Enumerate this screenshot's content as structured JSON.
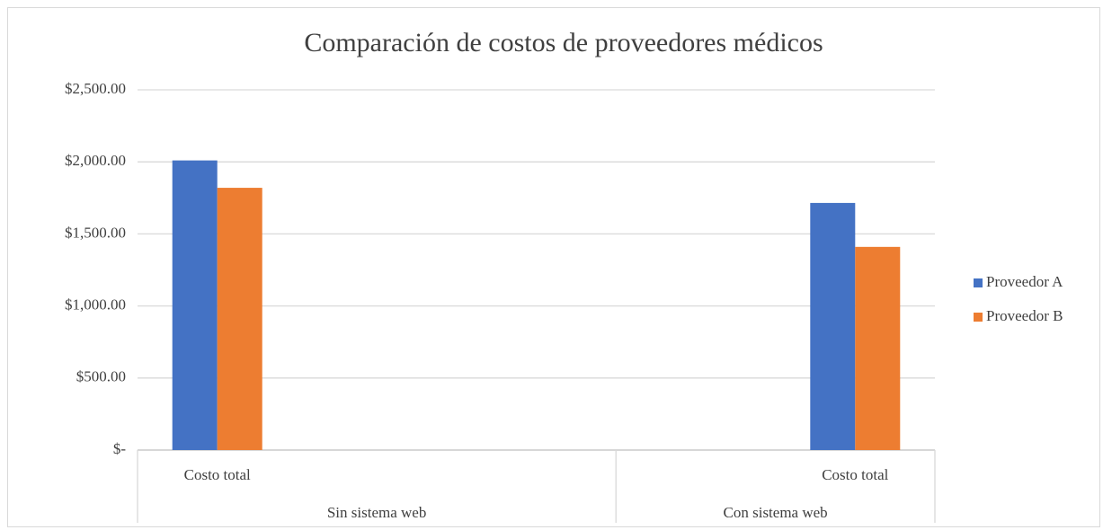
{
  "chart_data": {
    "type": "bar",
    "title": "Comparación  de costos de proveedores  médicos",
    "categories": [
      "Costo total",
      null,
      null,
      null,
      "Costo total"
    ],
    "groups": [
      "Sin sistema web",
      "Sin sistema web",
      "Sin sistema web",
      "Con sistema web",
      "Con sistema web"
    ],
    "series": [
      {
        "name": "Proveedor A",
        "color": "#4472c4",
        "values": [
          2010,
          null,
          null,
          null,
          1715
        ]
      },
      {
        "name": "Proveedor B",
        "color": "#ed7d31",
        "values": [
          1820,
          null,
          null,
          null,
          1410
        ]
      }
    ],
    "ylim": [
      0,
      2500
    ],
    "yticks": [
      {
        "value": 0,
        "label": "$-"
      },
      {
        "value": 500,
        "label": "$500.00"
      },
      {
        "value": 1000,
        "label": "$1,000.00"
      },
      {
        "value": 1500,
        "label": "$1,500.00"
      },
      {
        "value": 2000,
        "label": "$2,000.00"
      },
      {
        "value": 2500,
        "label": "$2,500.00"
      }
    ],
    "grid": true,
    "legend": "right"
  }
}
